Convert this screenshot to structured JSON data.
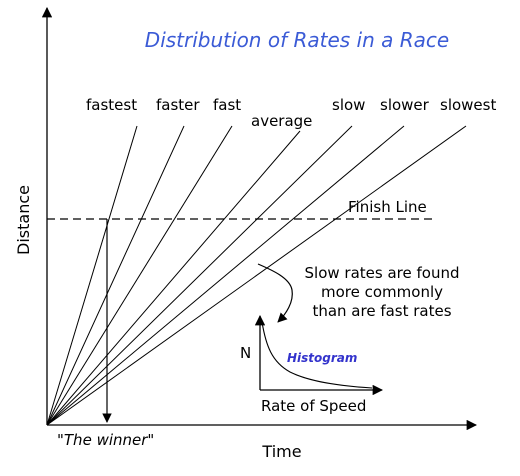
{
  "title": "Distribution of Rates in a Race",
  "axes": {
    "y_label": "Distance",
    "x_label": "Time"
  },
  "rate_labels": [
    "fastest",
    "faster",
    "fast",
    "average",
    "slow",
    "slower",
    "slowest"
  ],
  "finish_line_label": "Finish Line",
  "winner_label": "\"The winner\"",
  "annotation_lines": [
    "Slow rates are found",
    "more commonly",
    "than are fast rates"
  ],
  "histogram": {
    "title": "Histogram",
    "y_label": "N",
    "x_label": "Rate of Speed"
  },
  "colors": {
    "title": "#3b5bd6",
    "histogram_title": "#3333cc",
    "ink": "#000000"
  }
}
